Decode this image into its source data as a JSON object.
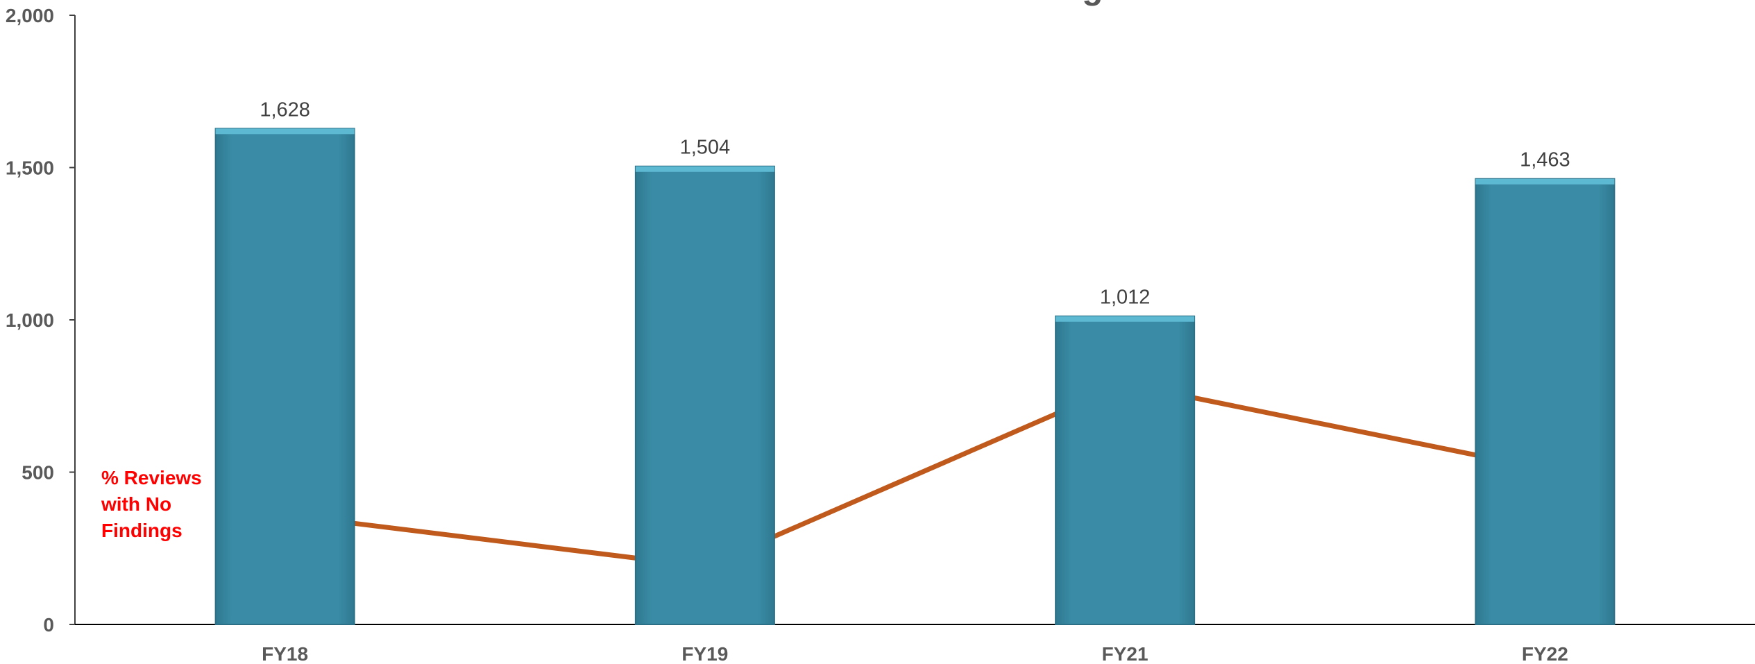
{
  "chart_data": {
    "type": "bar",
    "title": "% Reviews with No Findings",
    "categories": [
      "FY18",
      "FY19",
      "FY21",
      "FY22"
    ],
    "series": [
      {
        "type": "bar",
        "values": [
          1628,
          1504,
          1012,
          1463
        ],
        "data_labels": [
          "1,628",
          "1,504",
          "1,012",
          "1,463"
        ]
      },
      {
        "type": "line",
        "values": [
          360,
          190,
          790,
          510
        ]
      }
    ],
    "ylim": [
      0,
      2000
    ],
    "yticks": [
      0,
      500,
      1000,
      1500,
      2000
    ],
    "ytick_labels": [
      "0",
      "500",
      "1,000",
      "1,500",
      "2,000"
    ],
    "grid": false,
    "colors": {
      "bar": "#3a8ca6",
      "bar_top": "#5db8d2",
      "line": "#c0591c",
      "annotation": "#ff0000",
      "text": "#595959"
    },
    "annotation": {
      "text": "% Reviews with No Findings"
    }
  }
}
